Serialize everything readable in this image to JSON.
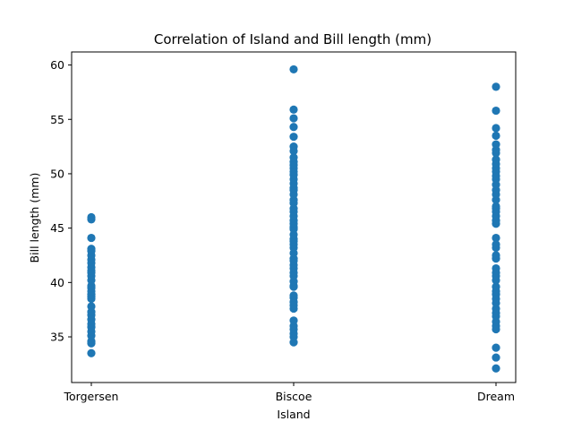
{
  "chart_data": {
    "type": "scatter",
    "title": "Correlation of Island and Bill length (mm)",
    "xlabel": "Island",
    "ylabel": "Bill length (mm)",
    "categories": [
      "Torgersen",
      "Biscoe",
      "Dream"
    ],
    "yticks": [
      35,
      40,
      45,
      50,
      55,
      60
    ],
    "ylim": [
      30.8,
      61.2
    ],
    "grid": false,
    "legend": "none",
    "marker_color": "#1f77b4",
    "points": {
      "Torgersen": [
        33.5,
        34.4,
        34.6,
        35.1,
        35.5,
        35.9,
        36.2,
        36.6,
        37.0,
        37.3,
        37.8,
        38.5,
        38.7,
        38.9,
        39.2,
        39.5,
        39.7,
        40.2,
        40.6,
        40.9,
        41.1,
        41.4,
        41.8,
        42.1,
        42.5,
        42.9,
        43.1,
        44.1,
        45.8,
        46.0
      ],
      "Biscoe": [
        34.5,
        35.0,
        35.3,
        35.7,
        36.0,
        36.5,
        37.6,
        37.9,
        38.2,
        38.6,
        38.8,
        39.6,
        39.7,
        40.1,
        40.6,
        40.9,
        41.3,
        41.6,
        42.0,
        42.2,
        42.7,
        43.2,
        43.5,
        43.8,
        44.0,
        44.4,
        44.9,
        45.1,
        45.4,
        45.7,
        46.1,
        46.5,
        46.8,
        47.3,
        47.6,
        48.1,
        48.5,
        48.7,
        49.1,
        49.5,
        49.9,
        50.2,
        50.5,
        50.8,
        51.1,
        51.5,
        52.1,
        52.5,
        53.4,
        54.3,
        55.1,
        55.9,
        59.6
      ],
      "Dream": [
        32.1,
        33.1,
        34.0,
        35.7,
        36.0,
        36.4,
        36.9,
        37.2,
        37.6,
        38.1,
        38.5,
        38.9,
        39.2,
        39.6,
        40.2,
        40.6,
        40.9,
        41.3,
        42.2,
        42.5,
        43.2,
        43.5,
        44.1,
        45.4,
        45.7,
        46.1,
        46.5,
        46.8,
        47.0,
        47.6,
        48.1,
        48.5,
        49.0,
        49.5,
        49.8,
        50.2,
        50.5,
        50.9,
        51.3,
        51.9,
        52.2,
        52.7,
        53.5,
        54.2,
        55.8,
        58.0
      ]
    }
  }
}
